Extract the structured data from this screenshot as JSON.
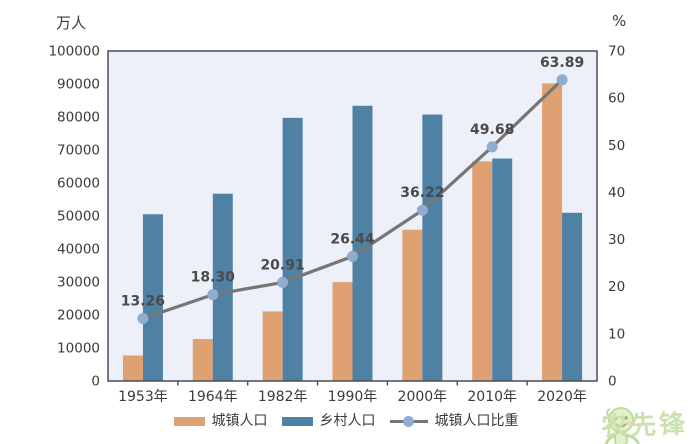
{
  "units": {
    "left": "万人",
    "right": "%"
  },
  "legend": [
    {
      "label": "城镇人口",
      "type": "bar",
      "color": "#dfa172"
    },
    {
      "label": "乡村人口",
      "type": "bar",
      "color": "#4f81a5"
    },
    {
      "label": "城镇人口比重",
      "type": "line",
      "color": "#767676",
      "marker_color": "#90accf"
    }
  ],
  "watermark": {
    "text": "农先锋"
  },
  "chart_data": {
    "type": "bar",
    "subtype": "bar+line combo",
    "categories": [
      "1953年",
      "1964年",
      "1982年",
      "1990年",
      "2000年",
      "2010年",
      "2020年"
    ],
    "series": [
      {
        "name": "城镇人口",
        "type": "bar",
        "axis": "left",
        "color": "#dfa172",
        "values": [
          7726,
          12710,
          21082,
          29971,
          45844,
          66557,
          90199
        ]
      },
      {
        "name": "乡村人口",
        "type": "bar",
        "axis": "left",
        "color": "#4f81a5",
        "values": [
          50534,
          56748,
          79736,
          83397,
          80739,
          67415,
          50979
        ]
      },
      {
        "name": "城镇人口比重",
        "type": "line",
        "axis": "right",
        "color": "#767676",
        "marker_color": "#90accf",
        "values": [
          13.26,
          18.3,
          20.91,
          26.44,
          36.22,
          49.68,
          63.89
        ],
        "point_labels": [
          "13.26",
          "18.30",
          "20.91",
          "26.44",
          "36.22",
          "49.68",
          "63.89"
        ]
      }
    ],
    "left_axis": {
      "unit": "万人",
      "min": 0,
      "max": 100000,
      "step": 10000
    },
    "right_axis": {
      "unit": "%",
      "min": 0,
      "max": 70,
      "step": 10
    },
    "plot_background": "#edf0f8",
    "border_color": "#4c4c57",
    "grid": false,
    "legend_position": "bottom",
    "title": ""
  }
}
